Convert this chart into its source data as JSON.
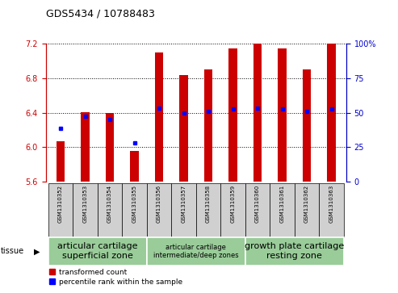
{
  "title": "GDS5434 / 10788483",
  "samples": [
    "GSM1310352",
    "GSM1310353",
    "GSM1310354",
    "GSM1310355",
    "GSM1310356",
    "GSM1310357",
    "GSM1310358",
    "GSM1310359",
    "GSM1310360",
    "GSM1310361",
    "GSM1310362",
    "GSM1310363"
  ],
  "red_values": [
    6.07,
    6.41,
    6.4,
    5.96,
    7.1,
    6.84,
    6.9,
    7.15,
    7.2,
    7.15,
    6.9,
    7.2
  ],
  "blue_values": [
    6.22,
    6.36,
    6.32,
    6.05,
    6.45,
    6.4,
    6.42,
    6.44,
    6.45,
    6.44,
    6.42,
    6.44
  ],
  "ylim_left": [
    5.6,
    7.2
  ],
  "ylim_right": [
    0,
    100
  ],
  "yticks_left": [
    5.6,
    6.0,
    6.4,
    6.8,
    7.2
  ],
  "yticks_right": [
    0,
    25,
    50,
    75,
    100
  ],
  "left_color": "#cc0000",
  "right_color": "#0000cc",
  "bar_base": 5.6,
  "bar_width": 0.35,
  "group_ranges": [
    [
      0,
      3
    ],
    [
      4,
      7
    ],
    [
      8,
      11
    ]
  ],
  "group_labels": [
    "articular cartilage\nsuperficial zone",
    "articular cartilage\nintermediate/deep zones",
    "growth plate cartilage\nresting zone"
  ],
  "tissue_label": "tissue",
  "legend_red": "transformed count",
  "legend_blue": "percentile rank within the sample",
  "background_color": "#ffffff",
  "plot_bg": "#ffffff",
  "green_color": "#99cc99"
}
